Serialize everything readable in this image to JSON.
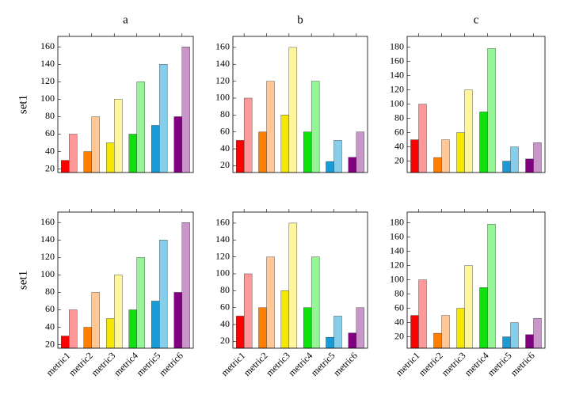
{
  "chart_data": [
    {
      "type": "bar",
      "title": "a",
      "ylabel": "set1",
      "categories": [
        null,
        null,
        null,
        null,
        null,
        null
      ],
      "series": [
        {
          "colors": [
            "#ff0000",
            "#ff7f00",
            "#f5e800",
            "#10e010",
            "#1a9bd7",
            "#800080"
          ],
          "values": [
            30,
            40,
            50,
            60,
            70,
            80
          ]
        },
        {
          "colors": [
            "#ff9999",
            "#ffc896",
            "#fff59a",
            "#96f596",
            "#87ceeb",
            "#c896c8"
          ],
          "values": [
            60,
            80,
            100,
            120,
            140,
            160
          ]
        }
      ],
      "ylim": [
        16,
        172
      ],
      "yticks": [
        20,
        40,
        60,
        80,
        100,
        120,
        140,
        160
      ]
    },
    {
      "type": "bar",
      "title": "b",
      "categories": [
        null,
        null,
        null,
        null,
        null,
        null
      ],
      "series": [
        {
          "colors": [
            "#ff0000",
            "#ff7f00",
            "#f5e800",
            "#10e010",
            "#1a9bd7",
            "#800080"
          ],
          "values": [
            50,
            60,
            80,
            60,
            25,
            30
          ]
        },
        {
          "colors": [
            "#ff9999",
            "#ffc896",
            "#fff59a",
            "#96f596",
            "#87ceeb",
            "#c896c8"
          ],
          "values": [
            100,
            120,
            160,
            120,
            50,
            60
          ]
        }
      ],
      "ylim": [
        12,
        173
      ],
      "yticks": [
        20,
        40,
        60,
        80,
        100,
        120,
        140,
        160
      ]
    },
    {
      "type": "bar",
      "title": "c",
      "categories": [
        null,
        null,
        null,
        null,
        null,
        null
      ],
      "series": [
        {
          "colors": [
            "#ff0000",
            "#ff7f00",
            "#f5e800",
            "#10e010",
            "#1a9bd7",
            "#800080"
          ],
          "values": [
            50,
            25,
            60,
            89,
            20,
            23
          ]
        },
        {
          "colors": [
            "#ff9999",
            "#ffc896",
            "#fff59a",
            "#96f596",
            "#87ceeb",
            "#c896c8"
          ],
          "values": [
            100,
            50,
            120,
            178,
            40,
            46
          ]
        }
      ],
      "ylim": [
        4,
        195
      ],
      "yticks": [
        20,
        40,
        60,
        80,
        100,
        120,
        140,
        160,
        180
      ]
    },
    {
      "type": "bar",
      "ylabel": "set1",
      "categories": [
        "metric1",
        "metric2",
        "metric3",
        "metric4",
        "metric5",
        "metric6"
      ],
      "series": [
        {
          "colors": [
            "#ff0000",
            "#ff7f00",
            "#f5e800",
            "#10e010",
            "#1a9bd7",
            "#800080"
          ],
          "values": [
            30,
            40,
            50,
            60,
            70,
            80
          ]
        },
        {
          "colors": [
            "#ff9999",
            "#ffc896",
            "#fff59a",
            "#96f596",
            "#87ceeb",
            "#c896c8"
          ],
          "values": [
            60,
            80,
            100,
            120,
            140,
            160
          ]
        }
      ],
      "ylim": [
        16,
        172
      ],
      "yticks": [
        20,
        40,
        60,
        80,
        100,
        120,
        140,
        160
      ]
    },
    {
      "type": "bar",
      "categories": [
        "metric1",
        "metric2",
        "metric3",
        "metric4",
        "metric5",
        "metric6"
      ],
      "series": [
        {
          "colors": [
            "#ff0000",
            "#ff7f00",
            "#f5e800",
            "#10e010",
            "#1a9bd7",
            "#800080"
          ],
          "values": [
            50,
            60,
            80,
            60,
            25,
            30
          ]
        },
        {
          "colors": [
            "#ff9999",
            "#ffc896",
            "#fff59a",
            "#96f596",
            "#87ceeb",
            "#c896c8"
          ],
          "values": [
            100,
            120,
            160,
            120,
            50,
            60
          ]
        }
      ],
      "ylim": [
        12,
        173
      ],
      "yticks": [
        20,
        40,
        60,
        80,
        100,
        120,
        140,
        160
      ]
    },
    {
      "type": "bar",
      "categories": [
        "metric1",
        "metric2",
        "metric3",
        "metric4",
        "metric5",
        "metric6"
      ],
      "series": [
        {
          "colors": [
            "#ff0000",
            "#ff7f00",
            "#f5e800",
            "#10e010",
            "#1a9bd7",
            "#800080"
          ],
          "values": [
            50,
            25,
            60,
            89,
            20,
            23
          ]
        },
        {
          "colors": [
            "#ff9999",
            "#ffc896",
            "#fff59a",
            "#96f596",
            "#87ceeb",
            "#c896c8"
          ],
          "values": [
            100,
            50,
            120,
            178,
            40,
            46
          ]
        }
      ],
      "ylim": [
        4,
        195
      ],
      "yticks": [
        20,
        40,
        60,
        80,
        100,
        120,
        140,
        160,
        180
      ]
    }
  ]
}
